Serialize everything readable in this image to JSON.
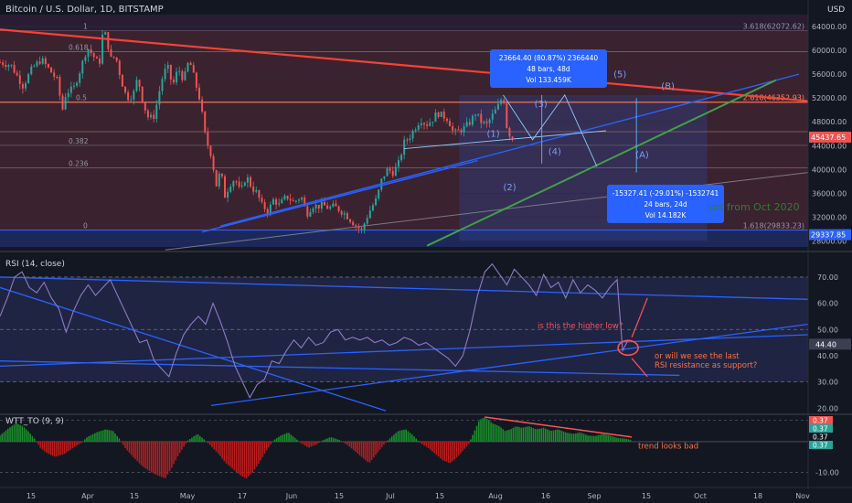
{
  "header": {
    "title": "Bitcoin / U.S. Dollar, 1D, BITSTAMP",
    "currency": "USD"
  },
  "colors": {
    "background": "#131722",
    "candle_up": "#26a69a",
    "candle_down": "#ef5350",
    "resistance_line": "#f44336",
    "trend_line": "#2962ff",
    "support_line": "#43a047",
    "rsi_line": "#7e57c2",
    "wtt_up": "#1b8f2c",
    "wtt_down": "#b71c1c",
    "annotation_red": "#ff5252"
  },
  "fib_labels": [
    {
      "label": "1",
      "value": "3.618(62072.62)"
    },
    {
      "label": "0.618",
      "value": ""
    },
    {
      "label": "0.5",
      "value": "2.618(46352.93)"
    },
    {
      "label": "0.382",
      "value": ""
    },
    {
      "label": "0.236",
      "value": ""
    },
    {
      "label": "0",
      "value": "1.618(29833.23)"
    }
  ],
  "price_badges": {
    "current": "45437.65",
    "support": "29337.85"
  },
  "measure_up": {
    "line1": "23664.40 (80.87%) 2366440",
    "line2": "48 bars, 48d",
    "line3": "Vol 133.459K"
  },
  "measure_down": {
    "line1": "-15327.41 (-29.01%) -1532741",
    "line2": "24 bars, 24d",
    "line3": "Vol 14.182K"
  },
  "waves": [
    "(1)",
    "(2)",
    "(3)",
    "(4)",
    "(5)",
    "(A)",
    "(B)"
  ],
  "support_text": "ort from Oct 2020",
  "rsi": {
    "title": "RSI (14, close)",
    "value_badge": "44.40",
    "note1": "is this the higher low?",
    "note2_line1": "or will we see the last",
    "note2_line2": "RSI resistance as support?"
  },
  "wtt": {
    "title": "WTT_TO (9, 9)",
    "badges": [
      "0.37",
      "0.37",
      "0.37",
      "0.37"
    ],
    "note": "trend looks bad"
  },
  "chart_data": [
    {
      "type": "candlestick",
      "title": "Bitcoin / U.S. Dollar, 1D, BITSTAMP",
      "x_ticks": [
        "15",
        "Apr",
        "15",
        "May",
        "17",
        "Jun",
        "15",
        "Jul",
        "15",
        "Aug",
        "16",
        "Sep",
        "15",
        "Oct",
        "18",
        "Nov"
      ],
      "y_ticks": [
        "64000.00",
        "60000.00",
        "56000.00",
        "52000.00",
        "48000.00",
        "44000.00",
        "40000.00",
        "36000.00",
        "32000.00",
        "28000.00"
      ],
      "ylim": [
        27000,
        66000
      ],
      "close_path": [
        [
          0,
          58000
        ],
        [
          12,
          57500
        ],
        [
          25,
          54000
        ],
        [
          35,
          57000
        ],
        [
          45,
          58500
        ],
        [
          55,
          56500
        ],
        [
          62,
          55000
        ],
        [
          68,
          50000
        ],
        [
          72,
          53000
        ],
        [
          80,
          53500
        ],
        [
          88,
          57000
        ],
        [
          95,
          60500
        ],
        [
          102,
          59000
        ],
        [
          108,
          57500
        ],
        [
          112,
          63000
        ],
        [
          116,
          62500
        ],
        [
          120,
          58500
        ],
        [
          126,
          59000
        ],
        [
          132,
          55000
        ],
        [
          138,
          52000
        ],
        [
          145,
          52500
        ],
        [
          150,
          55500
        ],
        [
          156,
          51000
        ],
        [
          162,
          48500
        ],
        [
          168,
          49000
        ],
        [
          176,
          55000
        ],
        [
          182,
          57500
        ],
        [
          188,
          54000
        ],
        [
          194,
          57000
        ],
        [
          200,
          55000
        ],
        [
          206,
          58500
        ],
        [
          212,
          55000
        ],
        [
          218,
          51500
        ],
        [
          224,
          45000
        ],
        [
          230,
          42500
        ],
        [
          236,
          37000
        ],
        [
          240,
          40000
        ],
        [
          245,
          35500
        ],
        [
          250,
          37500
        ],
        [
          256,
          38500
        ],
        [
          262,
          36000
        ],
        [
          268,
          39000
        ],
        [
          274,
          37000
        ],
        [
          280,
          36000
        ],
        [
          285,
          34000
        ],
        [
          292,
          33000
        ],
        [
          298,
          35000
        ],
        [
          304,
          34000
        ],
        [
          312,
          35500
        ],
        [
          320,
          34500
        ],
        [
          328,
          35500
        ],
        [
          334,
          32500
        ],
        [
          340,
          34000
        ],
        [
          346,
          33800
        ],
        [
          352,
          34000
        ],
        [
          358,
          33500
        ],
        [
          364,
          33800
        ],
        [
          370,
          33200
        ],
        [
          376,
          32500
        ],
        [
          382,
          31500
        ],
        [
          388,
          30500
        ],
        [
          394,
          29700
        ],
        [
          398,
          31500
        ],
        [
          404,
          33500
        ],
        [
          410,
          35000
        ],
        [
          416,
          38500
        ],
        [
          422,
          40000
        ],
        [
          428,
          39500
        ],
        [
          434,
          41000
        ],
        [
          440,
          44500
        ],
        [
          446,
          45500
        ],
        [
          452,
          47000
        ],
        [
          458,
          48500
        ],
        [
          464,
          47500
        ],
        [
          470,
          48200
        ],
        [
          476,
          49500
        ],
        [
          482,
          49000
        ],
        [
          488,
          48500
        ],
        [
          494,
          46000
        ],
        [
          500,
          46500
        ],
        [
          506,
          47000
        ],
        [
          512,
          48000
        ],
        [
          518,
          49500
        ],
        [
          524,
          48000
        ],
        [
          530,
          47500
        ],
        [
          536,
          49000
        ],
        [
          542,
          50500
        ],
        [
          548,
          52500
        ],
        [
          552,
          47000
        ],
        [
          556,
          45500
        ],
        [
          560,
          45437
        ]
      ],
      "resistance_line": [
        [
          0,
          63500
        ],
        [
          880,
          51500
        ]
      ],
      "trend_line_1": [
        [
          240,
          30500
        ],
        [
          870,
          56000
        ]
      ],
      "trend_line_2": [
        [
          220,
          29500
        ],
        [
          520,
          41500
        ]
      ],
      "support_line_green": [
        [
          465,
          27200
        ],
        [
          845,
          55000
        ]
      ],
      "support_line_gray": [
        [
          180,
          26500
        ],
        [
          880,
          39500
        ]
      ],
      "fib_levels": [
        63300,
        59800,
        51300,
        46350,
        44050,
        40300,
        29833
      ]
    },
    {
      "type": "line",
      "title": "RSI (14, close)",
      "y_ticks": [
        "70.00",
        "60.00",
        "50.00",
        "40.00",
        "30.00",
        "20.00"
      ],
      "ylim": [
        18,
        78
      ],
      "bands": [
        70,
        50,
        30
      ],
      "values": [
        [
          0,
          55
        ],
        [
          8,
          62
        ],
        [
          16,
          70
        ],
        [
          24,
          72
        ],
        [
          32,
          66
        ],
        [
          40,
          64
        ],
        [
          48,
          68
        ],
        [
          56,
          62
        ],
        [
          64,
          58
        ],
        [
          72,
          49
        ],
        [
          80,
          57
        ],
        [
          88,
          63
        ],
        [
          96,
          67
        ],
        [
          104,
          63
        ],
        [
          112,
          66
        ],
        [
          120,
          69
        ],
        [
          128,
          63
        ],
        [
          136,
          57
        ],
        [
          144,
          51
        ],
        [
          152,
          45
        ],
        [
          160,
          46
        ],
        [
          168,
          38
        ],
        [
          176,
          35
        ],
        [
          184,
          32
        ],
        [
          192,
          41
        ],
        [
          200,
          48
        ],
        [
          208,
          52
        ],
        [
          216,
          55
        ],
        [
          224,
          52
        ],
        [
          232,
          60
        ],
        [
          240,
          53
        ],
        [
          248,
          45
        ],
        [
          256,
          36
        ],
        [
          264,
          30
        ],
        [
          272,
          24
        ],
        [
          280,
          29
        ],
        [
          288,
          31
        ],
        [
          296,
          38
        ],
        [
          304,
          37
        ],
        [
          312,
          42
        ],
        [
          320,
          46
        ],
        [
          328,
          43
        ],
        [
          336,
          47
        ],
        [
          344,
          44
        ],
        [
          352,
          45
        ],
        [
          360,
          49
        ],
        [
          368,
          50
        ],
        [
          376,
          46
        ],
        [
          384,
          47
        ],
        [
          392,
          46
        ],
        [
          400,
          47
        ],
        [
          408,
          45
        ],
        [
          416,
          46
        ],
        [
          424,
          44
        ],
        [
          432,
          45
        ],
        [
          440,
          47
        ],
        [
          448,
          46
        ],
        [
          456,
          44
        ],
        [
          464,
          45
        ],
        [
          472,
          43
        ],
        [
          480,
          41
        ],
        [
          488,
          39
        ],
        [
          496,
          36
        ],
        [
          504,
          40
        ],
        [
          512,
          50
        ],
        [
          520,
          63
        ],
        [
          528,
          72
        ],
        [
          536,
          75
        ],
        [
          544,
          71
        ],
        [
          552,
          67
        ],
        [
          560,
          73
        ],
        [
          568,
          70
        ],
        [
          576,
          67
        ],
        [
          584,
          63
        ],
        [
          592,
          71
        ],
        [
          600,
          66
        ],
        [
          608,
          68
        ],
        [
          616,
          62
        ],
        [
          624,
          69
        ],
        [
          632,
          64
        ],
        [
          640,
          67
        ],
        [
          648,
          65
        ],
        [
          656,
          62
        ],
        [
          664,
          66
        ],
        [
          672,
          69
        ],
        [
          678,
          42
        ],
        [
          684,
          46
        ]
      ],
      "lines": [
        [
          [
            0,
            70
          ],
          [
            880,
            61.5
          ]
        ],
        [
          [
            0,
            66
          ],
          [
            420,
            19
          ]
        ],
        [
          [
            230,
            21
          ],
          [
            880,
            52
          ]
        ],
        [
          [
            0,
            36
          ],
          [
            880,
            48
          ]
        ],
        [
          [
            0,
            38
          ],
          [
            740,
            32.5
          ]
        ]
      ]
    },
    {
      "type": "bar",
      "title": "WTT_TO (9, 9)",
      "y_ticks": [
        "-10.00"
      ],
      "ylim": [
        -14,
        8
      ],
      "values": [
        [
          0,
          2
        ],
        [
          10,
          4.5
        ],
        [
          18,
          6
        ],
        [
          25,
          5
        ],
        [
          32,
          3
        ],
        [
          38,
          0.8
        ],
        [
          44,
          -2
        ],
        [
          50,
          -3.5
        ],
        [
          60,
          -5
        ],
        [
          70,
          -4
        ],
        [
          80,
          -2
        ],
        [
          88,
          -0.5
        ],
        [
          95,
          1.5
        ],
        [
          105,
          3
        ],
        [
          115,
          4
        ],
        [
          123,
          3.5
        ],
        [
          130,
          1
        ],
        [
          136,
          -2
        ],
        [
          145,
          -5
        ],
        [
          155,
          -8
        ],
        [
          165,
          -10
        ],
        [
          172,
          -11
        ],
        [
          180,
          -12
        ],
        [
          188,
          -8
        ],
        [
          195,
          -4
        ],
        [
          205,
          0.5
        ],
        [
          215,
          2.5
        ],
        [
          222,
          0.8
        ],
        [
          230,
          -1.5
        ],
        [
          238,
          -4
        ],
        [
          246,
          -7
        ],
        [
          254,
          -9
        ],
        [
          262,
          -11
        ],
        [
          268,
          -12
        ],
        [
          275,
          -10
        ],
        [
          282,
          -7
        ],
        [
          290,
          -3
        ],
        [
          298,
          0.5
        ],
        [
          306,
          2
        ],
        [
          314,
          3
        ],
        [
          320,
          1.5
        ],
        [
          328,
          -0.5
        ],
        [
          336,
          -2
        ],
        [
          344,
          -1
        ],
        [
          352,
          0.5
        ],
        [
          360,
          1.5
        ],
        [
          370,
          0.5
        ],
        [
          378,
          -1
        ],
        [
          386,
          -3
        ],
        [
          394,
          -5
        ],
        [
          402,
          -7
        ],
        [
          410,
          -4
        ],
        [
          418,
          -1
        ],
        [
          426,
          1.5
        ],
        [
          434,
          3.5
        ],
        [
          442,
          4
        ],
        [
          450,
          2
        ],
        [
          458,
          -0.5
        ],
        [
          466,
          -2
        ],
        [
          474,
          -4
        ],
        [
          482,
          -6
        ],
        [
          490,
          -7
        ],
        [
          498,
          -5
        ],
        [
          504,
          -3
        ],
        [
          510,
          -1
        ],
        [
          516,
          3
        ],
        [
          522,
          7
        ],
        [
          528,
          8
        ],
        [
          536,
          6
        ],
        [
          544,
          5
        ],
        [
          550,
          3.5
        ],
        [
          556,
          4
        ],
        [
          562,
          5
        ],
        [
          568,
          4.5
        ],
        [
          576,
          5
        ],
        [
          584,
          4
        ],
        [
          592,
          4.5
        ],
        [
          600,
          3.5
        ],
        [
          608,
          4
        ],
        [
          616,
          3
        ],
        [
          624,
          2.5
        ],
        [
          632,
          3
        ],
        [
          640,
          2
        ],
        [
          648,
          1.8
        ],
        [
          656,
          2.5
        ],
        [
          664,
          2
        ],
        [
          672,
          1.2
        ],
        [
          680,
          1
        ],
        [
          688,
          0.5
        ]
      ],
      "trend_line": [
        [
          528,
          8
        ],
        [
          688,
          1.5
        ]
      ]
    }
  ]
}
